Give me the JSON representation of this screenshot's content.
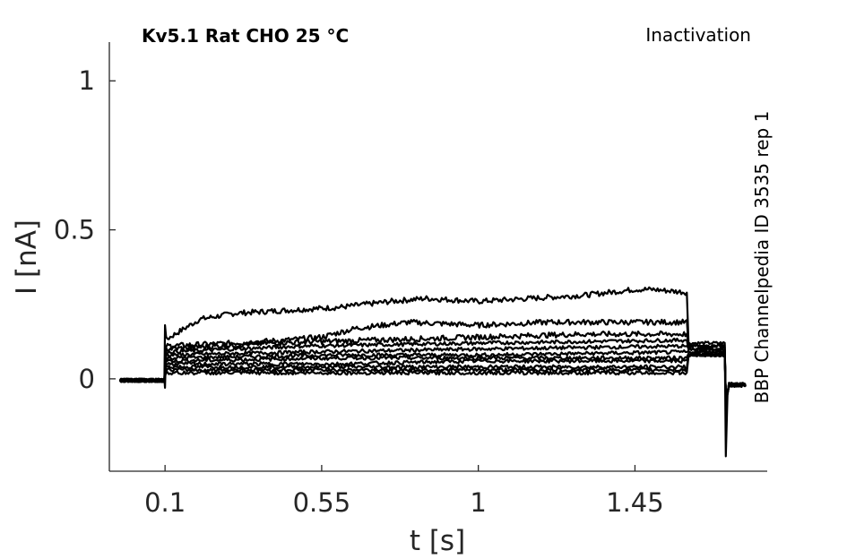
{
  "chart_data": {
    "type": "line",
    "title": "Kv5.1  Rat  CHO  25 °C",
    "annotation_top_right": "Inactivation",
    "annotation_right_vertical": "BBP Channelpedia ID 3535 rep 1",
    "xlabel": "t [s]",
    "ylabel": "I [nA]",
    "xlim": [
      -0.06,
      1.83
    ],
    "ylim": [
      -0.31,
      1.13
    ],
    "xticks": [
      0.1,
      0.55,
      1,
      1.45
    ],
    "xtick_labels": [
      "0.1",
      "0.55",
      "1",
      "1.45"
    ],
    "yticks": [
      0,
      0.5,
      1
    ],
    "ytick_labels": [
      "0",
      "0.5",
      "1"
    ],
    "grid": false,
    "line_color": "#000000",
    "pulse_start": 0.1,
    "pulse_end": 1.6,
    "tail_end": 1.71,
    "trace_end": 1.77,
    "series": [
      {
        "values": [
          [
            0.1,
            0.13
          ],
          [
            0.2,
            0.2
          ],
          [
            0.3,
            0.22
          ],
          [
            0.45,
            0.23
          ],
          [
            0.6,
            0.24
          ],
          [
            0.75,
            0.26
          ],
          [
            0.85,
            0.27
          ],
          [
            1.0,
            0.26
          ],
          [
            1.15,
            0.27
          ],
          [
            1.3,
            0.28
          ],
          [
            1.45,
            0.3
          ],
          [
            1.5,
            0.3
          ],
          [
            1.6,
            0.29
          ]
        ],
        "tail": 0.12
      },
      {
        "values": [
          [
            0.1,
            0.11
          ],
          [
            0.3,
            0.12
          ],
          [
            0.45,
            0.13
          ],
          [
            0.55,
            0.14
          ],
          [
            0.65,
            0.17
          ],
          [
            0.8,
            0.19
          ],
          [
            1.0,
            0.18
          ],
          [
            1.2,
            0.19
          ],
          [
            1.4,
            0.19
          ],
          [
            1.6,
            0.19
          ]
        ],
        "tail": 0.11
      },
      {
        "values": [
          [
            0.1,
            0.1
          ],
          [
            0.4,
            0.12
          ],
          [
            0.7,
            0.13
          ],
          [
            1.0,
            0.14
          ],
          [
            1.3,
            0.15
          ],
          [
            1.6,
            0.15
          ]
        ],
        "tail": 0.11
      },
      {
        "values": [
          [
            0.1,
            0.09
          ],
          [
            0.5,
            0.11
          ],
          [
            1.0,
            0.12
          ],
          [
            1.6,
            0.13
          ]
        ],
        "tail": 0.1
      },
      {
        "values": [
          [
            0.1,
            0.08
          ],
          [
            0.5,
            0.09
          ],
          [
            1.0,
            0.1
          ],
          [
            1.6,
            0.11
          ]
        ],
        "tail": 0.1
      },
      {
        "values": [
          [
            0.1,
            0.07
          ],
          [
            0.6,
            0.08
          ],
          [
            1.0,
            0.08
          ],
          [
            1.6,
            0.09
          ]
        ],
        "tail": 0.09
      },
      {
        "values": [
          [
            0.1,
            0.06
          ],
          [
            0.6,
            0.07
          ],
          [
            1.0,
            0.07
          ],
          [
            1.6,
            0.07
          ]
        ],
        "tail": 0.09
      },
      {
        "values": [
          [
            0.1,
            0.05
          ],
          [
            0.6,
            0.05
          ],
          [
            1.0,
            0.06
          ],
          [
            1.6,
            0.06
          ]
        ],
        "tail": 0.08
      },
      {
        "values": [
          [
            0.1,
            0.04
          ],
          [
            0.6,
            0.04
          ],
          [
            1.0,
            0.04
          ],
          [
            1.6,
            0.04
          ]
        ],
        "tail": 0.08
      },
      {
        "values": [
          [
            0.1,
            0.03
          ],
          [
            0.6,
            0.03
          ],
          [
            1.0,
            0.03
          ],
          [
            1.6,
            0.03
          ]
        ],
        "tail": 0.08
      },
      {
        "values": [
          [
            0.1,
            0.02
          ],
          [
            0.6,
            0.02
          ],
          [
            1.0,
            0.02
          ],
          [
            1.6,
            0.02
          ]
        ],
        "tail": 0.08
      }
    ]
  }
}
